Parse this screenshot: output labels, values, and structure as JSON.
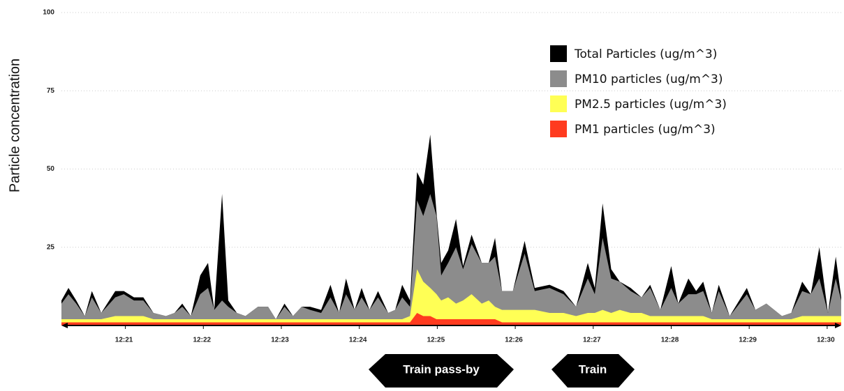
{
  "chart_data": {
    "type": "area",
    "y_label": "Particle concentration",
    "annotations": [
      "Train pass-by",
      "Train"
    ],
    "xlim": [
      20.18,
      30.18
    ],
    "xticks": [
      {
        "value": 21,
        "label": "12:21"
      },
      {
        "value": 22,
        "label": "12:22"
      },
      {
        "value": 23,
        "label": "12:23"
      },
      {
        "value": 24,
        "label": "12:24"
      },
      {
        "value": 25,
        "label": "12:25"
      },
      {
        "value": 26,
        "label": "12:26"
      },
      {
        "value": 27,
        "label": "12:27"
      },
      {
        "value": 28,
        "label": "12:28"
      },
      {
        "value": 29,
        "label": "12:29"
      },
      {
        "value": 30,
        "label": "12:30"
      }
    ],
    "ylim": [
      0,
      100
    ],
    "yticks": [
      25,
      50,
      75,
      100
    ],
    "grid": true,
    "legend": "upper right",
    "x": [
      20.18,
      20.27,
      20.37,
      20.48,
      20.57,
      20.69,
      20.87,
      20.98,
      21.11,
      21.23,
      21.36,
      21.52,
      21.63,
      21.73,
      21.84,
      21.96,
      22.06,
      22.14,
      22.24,
      22.32,
      22.43,
      22.54,
      22.7,
      22.83,
      22.93,
      23.04,
      23.15,
      23.26,
      23.37,
      23.51,
      23.63,
      23.74,
      23.83,
      23.94,
      24.03,
      24.13,
      24.24,
      24.37,
      24.46,
      24.55,
      24.65,
      24.74,
      24.82,
      24.91,
      24.99,
      25.05,
      25.14,
      25.24,
      25.33,
      25.44,
      25.57,
      25.66,
      25.74,
      25.83,
      25.97,
      26.12,
      26.25,
      26.44,
      26.62,
      26.78,
      26.93,
      27.02,
      27.12,
      27.23,
      27.34,
      27.48,
      27.62,
      27.73,
      27.86,
      28.0,
      28.09,
      28.22,
      28.32,
      28.41,
      28.52,
      28.61,
      28.75,
      28.97,
      29.08,
      29.22,
      29.42,
      29.54,
      29.68,
      29.79,
      29.9,
      30.01,
      30.11,
      30.18
    ],
    "series": [
      {
        "name": "Total Particles (ug/m^3)",
        "color": "#000000",
        "values": [
          8,
          12,
          8,
          3,
          11,
          4,
          11,
          11,
          9,
          9,
          4,
          3,
          4,
          7,
          3,
          16,
          20,
          5,
          42,
          8,
          4,
          3,
          6,
          6,
          2,
          7,
          3,
          6,
          6,
          5,
          13,
          4,
          15,
          5,
          12,
          5,
          11,
          4,
          5,
          13,
          8,
          49,
          45,
          61,
          36,
          20,
          24,
          34,
          19,
          29,
          20,
          20,
          28,
          11,
          11,
          27,
          12,
          13,
          11,
          6,
          20,
          12,
          39,
          18,
          14,
          12,
          9,
          13,
          5,
          19,
          7,
          15,
          11,
          14,
          4,
          13,
          3,
          12,
          5,
          7,
          3,
          4,
          14,
          10,
          25,
          4,
          22,
          9
        ]
      },
      {
        "name": "PM10 particles (ug/m^3)",
        "color": "#8c8c8c",
        "values": [
          7,
          10,
          7,
          3,
          9,
          4,
          9,
          10,
          8,
          8,
          4,
          3,
          4,
          6,
          3,
          10,
          12,
          5,
          8,
          6,
          4,
          3,
          6,
          6,
          2,
          6,
          3,
          6,
          5,
          4,
          9,
          4,
          10,
          5,
          9,
          5,
          9,
          4,
          5,
          9,
          6,
          40,
          35,
          42,
          35,
          16,
          20,
          25,
          18,
          26,
          20,
          20,
          22,
          11,
          11,
          23,
          11,
          12,
          10,
          6,
          15,
          10,
          28,
          15,
          14,
          11,
          9,
          12,
          5,
          12,
          7,
          10,
          10,
          11,
          4,
          11,
          3,
          10,
          5,
          7,
          3,
          4,
          11,
          10,
          15,
          4,
          15,
          8
        ]
      },
      {
        "name": "PM2.5 particles (ug/m^3)",
        "color": "#ffff55",
        "values": [
          2,
          2,
          2,
          2,
          2,
          2,
          3,
          3,
          3,
          3,
          2,
          2,
          2,
          2,
          2,
          2,
          2,
          2,
          2,
          2,
          2,
          2,
          2,
          2,
          2,
          2,
          2,
          2,
          2,
          2,
          2,
          2,
          2,
          2,
          2,
          2,
          2,
          2,
          2,
          2,
          3,
          18,
          14,
          12,
          10,
          8,
          9,
          7,
          8,
          10,
          7,
          8,
          6,
          5,
          5,
          5,
          5,
          4,
          4,
          3,
          4,
          4,
          5,
          4,
          5,
          4,
          4,
          3,
          3,
          3,
          3,
          3,
          3,
          3,
          2,
          2,
          2,
          2,
          2,
          2,
          2,
          2,
          3,
          3,
          3,
          3,
          3,
          3
        ]
      },
      {
        "name": "PM1 particles (ug/m^3)",
        "color": "#ff3b1f",
        "values": [
          1,
          1,
          1,
          1,
          1,
          1,
          1,
          1,
          1,
          1,
          1,
          1,
          1,
          1,
          1,
          1,
          1,
          1,
          1,
          1,
          1,
          1,
          1,
          1,
          1,
          1,
          1,
          1,
          1,
          1,
          1,
          1,
          1,
          1,
          1,
          1,
          1,
          1,
          1,
          1,
          1,
          4,
          3,
          3,
          2,
          2,
          2,
          2,
          2,
          2,
          2,
          2,
          2,
          1,
          1,
          1,
          1,
          1,
          1,
          1,
          1,
          1,
          1,
          1,
          1,
          1,
          1,
          1,
          1,
          1,
          1,
          1,
          1,
          1,
          1,
          1,
          1,
          1,
          1,
          1,
          1,
          1,
          1,
          1,
          1,
          1,
          1,
          1
        ]
      }
    ]
  }
}
